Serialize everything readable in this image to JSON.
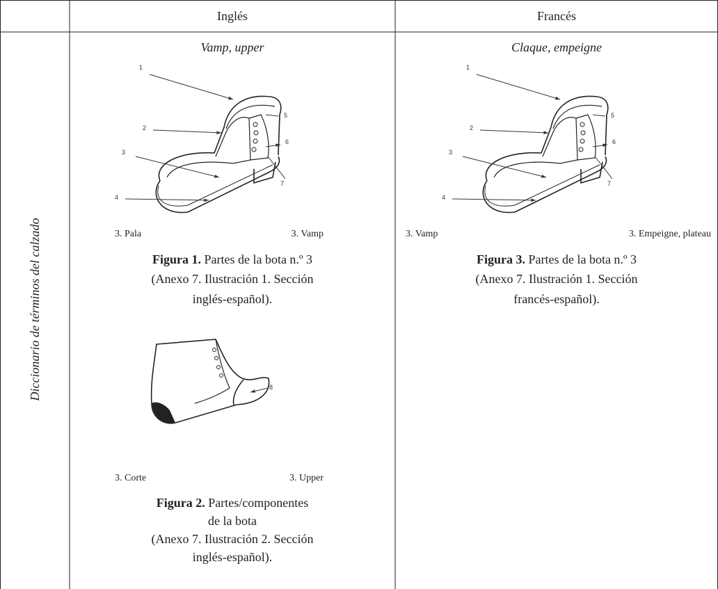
{
  "table": {
    "header": [
      "Inglés",
      "Francés"
    ],
    "row_label": "Diccionario de términos del calzado",
    "english": {
      "term": "Vamp, upper",
      "figures": [
        {
          "callouts": [
            "1",
            "2",
            "3",
            "4",
            "5",
            "6",
            "7"
          ],
          "equivalents": [
            "3. Pala",
            "3. Vamp"
          ],
          "caption": {
            "label": "Figura 1.",
            "lines": [
              "Partes de la bota n.º 3",
              "(Anexo 7. Ilustración 1. Sección",
              "inglés-español)."
            ]
          }
        },
        {
          "callouts": [
            "8"
          ],
          "equivalents": [
            "3. Corte",
            "3. Upper"
          ],
          "caption": {
            "label": "Figura 2.",
            "lines": [
              "Partes/componentes",
              "de la bota",
              "(Anexo 7. Ilustración 2. Sección",
              "inglés-español)."
            ]
          }
        }
      ]
    },
    "french": {
      "term": "Claque, empeigne",
      "figures": [
        {
          "callouts": [
            "1",
            "2",
            "3",
            "4",
            "5",
            "6",
            "7"
          ],
          "equivalents": [
            "3. Vamp",
            "3. Empeigne, plateau"
          ],
          "caption": {
            "label": "Figura 3.",
            "lines": [
              "Partes de la bota n.º 3",
              "(Anexo 7. Ilustración 1. Sección",
              "francés-español)."
            ]
          }
        }
      ]
    }
  }
}
